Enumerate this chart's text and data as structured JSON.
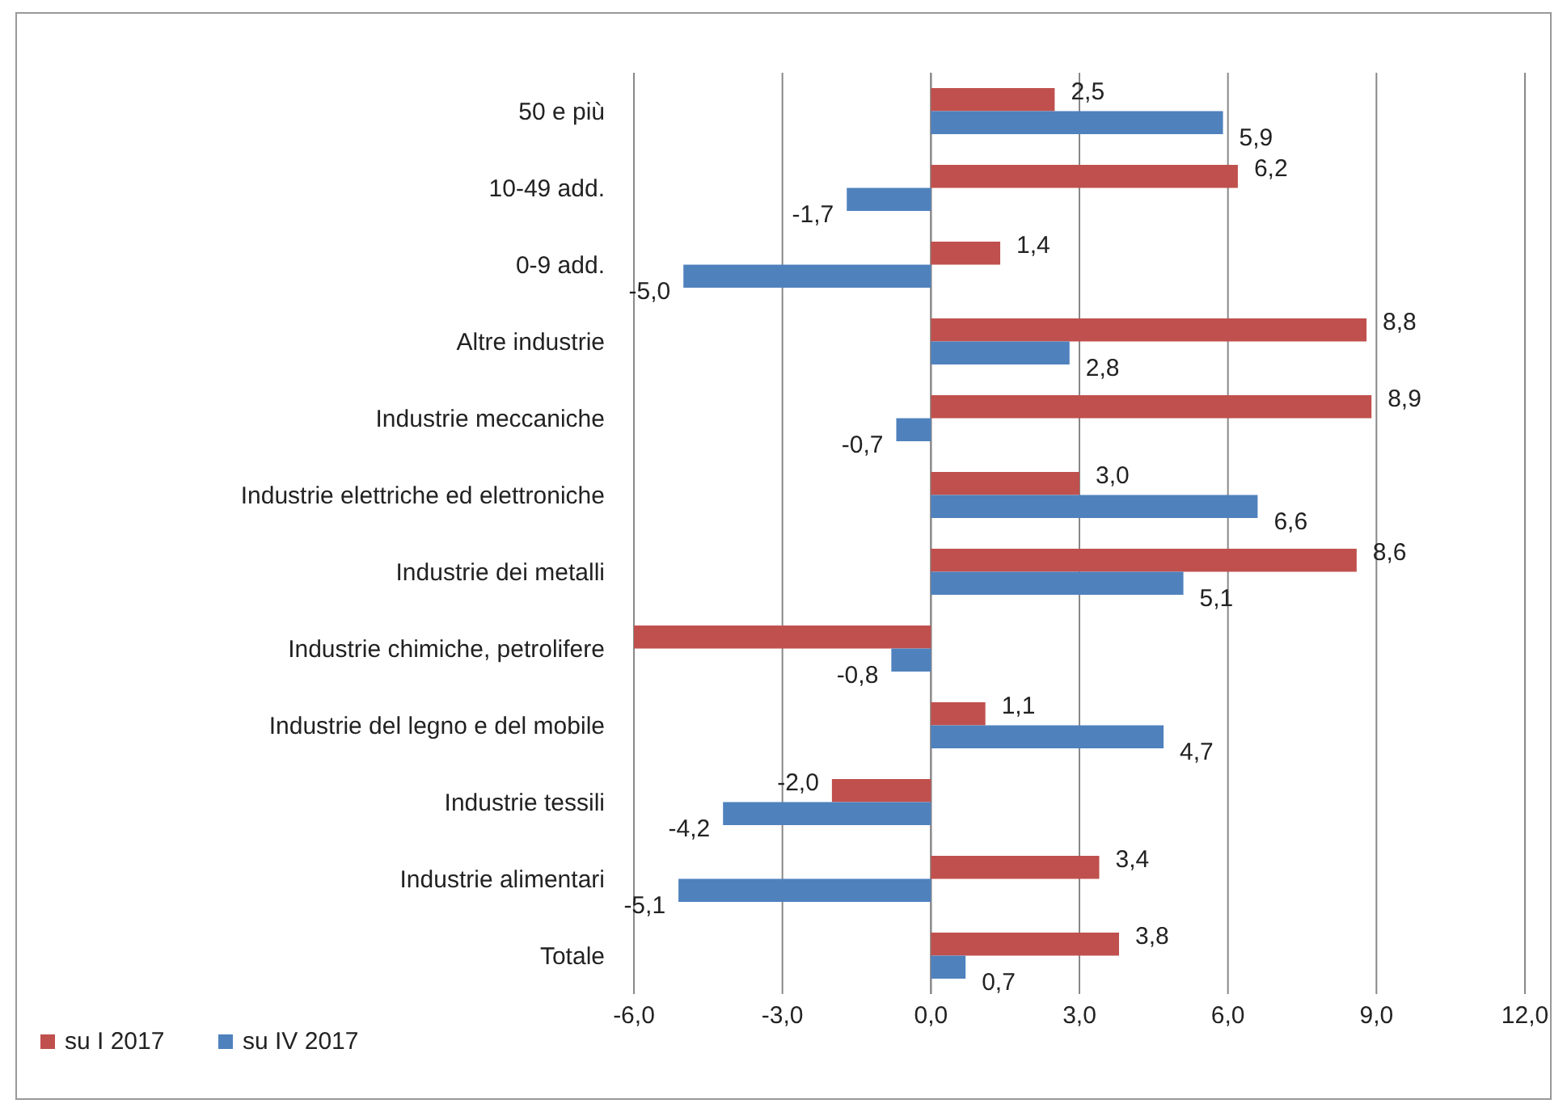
{
  "chart_data": {
    "type": "bar",
    "orientation": "horizontal",
    "categories": [
      "50 e più",
      "10-49 add.",
      "0-9 add.",
      "Altre industrie",
      "Industrie meccaniche",
      "Industrie elettriche ed elettroniche",
      "Industrie dei metalli",
      "Industrie chimiche, petrolifere",
      "Industrie del legno e del mobile",
      "Industrie tessili",
      "Industrie alimentari",
      "Totale"
    ],
    "series": [
      {
        "name": "su I 2017",
        "color": "#c0504d",
        "values": [
          2.5,
          6.2,
          1.4,
          8.8,
          8.9,
          3.0,
          8.6,
          -6.0,
          1.1,
          -2.0,
          3.4,
          3.8
        ],
        "value_labels": [
          "2,5",
          "6,2",
          "1,4",
          "8,8",
          "8,9",
          "3,0",
          "8,6",
          null,
          "1,1",
          "-2,0",
          "3,4",
          "3,8"
        ]
      },
      {
        "name": "su IV 2017",
        "color": "#4f81bd",
        "values": [
          5.9,
          -1.7,
          -5.0,
          2.8,
          -0.7,
          6.6,
          5.1,
          -0.8,
          4.7,
          -4.2,
          -5.1,
          0.7
        ],
        "value_labels": [
          "5,9",
          "-1,7",
          "-5,0",
          "2,8",
          "-0,7",
          "6,6",
          "5,1",
          "-0,8",
          "4,7",
          "-4,2",
          "-5,1",
          "0,7"
        ]
      }
    ],
    "xlim": [
      -6,
      12
    ],
    "xticks": [
      {
        "value": -6,
        "label": "-6,0"
      },
      {
        "value": -3,
        "label": "-3,0"
      },
      {
        "value": 0,
        "label": "0,0"
      },
      {
        "value": 3,
        "label": "3,0"
      },
      {
        "value": 6,
        "label": "6,0"
      },
      {
        "value": 9,
        "label": "9,0"
      },
      {
        "value": 12,
        "label": "12,0"
      }
    ],
    "grid": "x",
    "legend": "bottom left"
  }
}
